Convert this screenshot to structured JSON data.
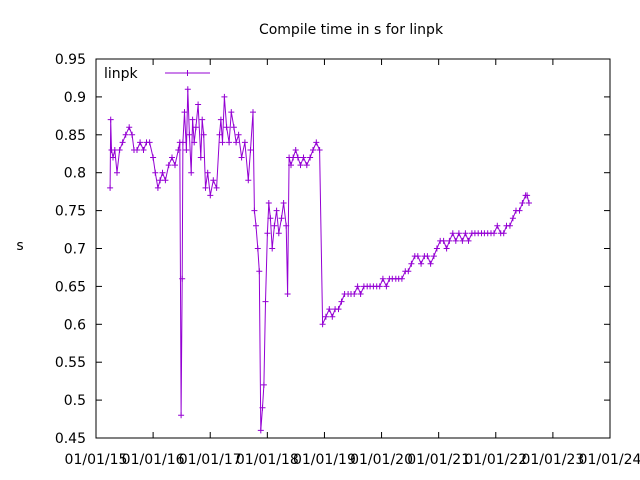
{
  "chart_data": {
    "type": "line",
    "title": "Compile time in s for linpk",
    "xlabel": "",
    "ylabel": "s",
    "ylim": [
      0.45,
      0.95
    ],
    "yticks": [
      "0.45",
      "0.5",
      "0.55",
      "0.6",
      "0.65",
      "0.7",
      "0.75",
      "0.8",
      "0.85",
      "0.9",
      "0.95"
    ],
    "xlim": [
      "2015-01-01",
      "2024-01-01"
    ],
    "xticks": [
      "01/01/15",
      "01/01/16",
      "01/01/17",
      "01/01/18",
      "01/01/19",
      "01/01/20",
      "01/01/21",
      "01/01/22",
      "01/01/23",
      "01/01/24"
    ],
    "grid": false,
    "legend_position": "top-left",
    "series": [
      {
        "name": "linpk",
        "color": "#9400d3",
        "marker": "plus",
        "points": [
          [
            "2015-04-01",
            0.78
          ],
          [
            "2015-04-05",
            0.87
          ],
          [
            "2015-04-10",
            0.83
          ],
          [
            "2015-04-20",
            0.82
          ],
          [
            "2015-05-01",
            0.83
          ],
          [
            "2015-05-15",
            0.8
          ],
          [
            "2015-06-01",
            0.83
          ],
          [
            "2015-06-20",
            0.84
          ],
          [
            "2015-07-10",
            0.85
          ],
          [
            "2015-08-01",
            0.86
          ],
          [
            "2015-08-20",
            0.85
          ],
          [
            "2015-09-01",
            0.83
          ],
          [
            "2015-09-20",
            0.83
          ],
          [
            "2015-10-10",
            0.84
          ],
          [
            "2015-11-01",
            0.83
          ],
          [
            "2015-11-20",
            0.84
          ],
          [
            "2015-12-10",
            0.84
          ],
          [
            "2016-01-01",
            0.82
          ],
          [
            "2016-01-15",
            0.8
          ],
          [
            "2016-02-01",
            0.78
          ],
          [
            "2016-02-15",
            0.79
          ],
          [
            "2016-03-01",
            0.8
          ],
          [
            "2016-03-20",
            0.79
          ],
          [
            "2016-04-10",
            0.81
          ],
          [
            "2016-05-01",
            0.82
          ],
          [
            "2016-05-20",
            0.81
          ],
          [
            "2016-06-10",
            0.83
          ],
          [
            "2016-06-20",
            0.84
          ],
          [
            "2016-06-28",
            0.48
          ],
          [
            "2016-07-05",
            0.66
          ],
          [
            "2016-07-10",
            0.84
          ],
          [
            "2016-07-20",
            0.88
          ],
          [
            "2016-08-01",
            0.83
          ],
          [
            "2016-08-10",
            0.91
          ],
          [
            "2016-08-20",
            0.85
          ],
          [
            "2016-09-01",
            0.8
          ],
          [
            "2016-09-10",
            0.87
          ],
          [
            "2016-09-20",
            0.84
          ],
          [
            "2016-10-01",
            0.86
          ],
          [
            "2016-10-15",
            0.89
          ],
          [
            "2016-11-01",
            0.82
          ],
          [
            "2016-11-10",
            0.87
          ],
          [
            "2016-11-20",
            0.85
          ],
          [
            "2016-12-01",
            0.78
          ],
          [
            "2016-12-15",
            0.8
          ],
          [
            "2017-01-01",
            0.77
          ],
          [
            "2017-01-20",
            0.79
          ],
          [
            "2017-02-10",
            0.78
          ],
          [
            "2017-03-01",
            0.85
          ],
          [
            "2017-03-10",
            0.87
          ],
          [
            "2017-03-20",
            0.84
          ],
          [
            "2017-04-01",
            0.9
          ],
          [
            "2017-04-15",
            0.86
          ],
          [
            "2017-05-01",
            0.84
          ],
          [
            "2017-05-15",
            0.88
          ],
          [
            "2017-06-01",
            0.86
          ],
          [
            "2017-06-15",
            0.84
          ],
          [
            "2017-07-01",
            0.85
          ],
          [
            "2017-07-20",
            0.82
          ],
          [
            "2017-08-10",
            0.84
          ],
          [
            "2017-09-01",
            0.79
          ],
          [
            "2017-09-15",
            0.83
          ],
          [
            "2017-10-01",
            0.88
          ],
          [
            "2017-10-10",
            0.75
          ],
          [
            "2017-10-20",
            0.73
          ],
          [
            "2017-11-01",
            0.7
          ],
          [
            "2017-11-10",
            0.67
          ],
          [
            "2017-11-20",
            0.46
          ],
          [
            "2017-12-01",
            0.49
          ],
          [
            "2017-12-10",
            0.52
          ],
          [
            "2017-12-20",
            0.63
          ],
          [
            "2018-01-01",
            0.72
          ],
          [
            "2018-01-10",
            0.76
          ],
          [
            "2018-01-20",
            0.74
          ],
          [
            "2018-02-01",
            0.7
          ],
          [
            "2018-02-15",
            0.73
          ],
          [
            "2018-03-01",
            0.75
          ],
          [
            "2018-03-15",
            0.72
          ],
          [
            "2018-04-01",
            0.74
          ],
          [
            "2018-04-15",
            0.76
          ],
          [
            "2018-05-01",
            0.73
          ],
          [
            "2018-05-10",
            0.64
          ],
          [
            "2018-05-20",
            0.82
          ],
          [
            "2018-06-01",
            0.81
          ],
          [
            "2018-06-15",
            0.82
          ],
          [
            "2018-07-01",
            0.83
          ],
          [
            "2018-07-15",
            0.82
          ],
          [
            "2018-08-01",
            0.81
          ],
          [
            "2018-08-20",
            0.82
          ],
          [
            "2018-09-10",
            0.81
          ],
          [
            "2018-10-01",
            0.82
          ],
          [
            "2018-10-20",
            0.83
          ],
          [
            "2018-11-10",
            0.84
          ],
          [
            "2018-12-01",
            0.83
          ],
          [
            "2018-12-20",
            0.6
          ],
          [
            "2019-01-10",
            0.61
          ],
          [
            "2019-02-01",
            0.62
          ],
          [
            "2019-02-20",
            0.61
          ],
          [
            "2019-03-10",
            0.62
          ],
          [
            "2019-04-01",
            0.62
          ],
          [
            "2019-04-20",
            0.63
          ],
          [
            "2019-05-10",
            0.64
          ],
          [
            "2019-06-01",
            0.64
          ],
          [
            "2019-06-20",
            0.64
          ],
          [
            "2019-07-10",
            0.64
          ],
          [
            "2019-08-01",
            0.65
          ],
          [
            "2019-08-20",
            0.64
          ],
          [
            "2019-09-10",
            0.65
          ],
          [
            "2019-10-01",
            0.65
          ],
          [
            "2019-10-20",
            0.65
          ],
          [
            "2019-11-10",
            0.65
          ],
          [
            "2019-12-01",
            0.65
          ],
          [
            "2019-12-20",
            0.65
          ],
          [
            "2020-01-10",
            0.66
          ],
          [
            "2020-02-01",
            0.65
          ],
          [
            "2020-02-20",
            0.66
          ],
          [
            "2020-03-10",
            0.66
          ],
          [
            "2020-04-01",
            0.66
          ],
          [
            "2020-04-20",
            0.66
          ],
          [
            "2020-05-10",
            0.66
          ],
          [
            "2020-06-01",
            0.67
          ],
          [
            "2020-06-20",
            0.67
          ],
          [
            "2020-07-10",
            0.68
          ],
          [
            "2020-08-01",
            0.69
          ],
          [
            "2020-08-20",
            0.69
          ],
          [
            "2020-09-10",
            0.68
          ],
          [
            "2020-10-01",
            0.69
          ],
          [
            "2020-10-20",
            0.69
          ],
          [
            "2020-11-10",
            0.68
          ],
          [
            "2020-12-01",
            0.69
          ],
          [
            "2020-12-20",
            0.7
          ],
          [
            "2021-01-10",
            0.71
          ],
          [
            "2021-02-01",
            0.71
          ],
          [
            "2021-02-20",
            0.7
          ],
          [
            "2021-03-10",
            0.71
          ],
          [
            "2021-04-01",
            0.72
          ],
          [
            "2021-04-20",
            0.71
          ],
          [
            "2021-05-10",
            0.72
          ],
          [
            "2021-06-01",
            0.71
          ],
          [
            "2021-06-20",
            0.72
          ],
          [
            "2021-07-10",
            0.71
          ],
          [
            "2021-08-01",
            0.72
          ],
          [
            "2021-08-20",
            0.72
          ],
          [
            "2021-09-10",
            0.72
          ],
          [
            "2021-10-01",
            0.72
          ],
          [
            "2021-10-20",
            0.72
          ],
          [
            "2021-11-10",
            0.72
          ],
          [
            "2021-12-01",
            0.72
          ],
          [
            "2021-12-20",
            0.72
          ],
          [
            "2022-01-10",
            0.73
          ],
          [
            "2022-02-01",
            0.72
          ],
          [
            "2022-02-20",
            0.72
          ],
          [
            "2022-03-10",
            0.73
          ],
          [
            "2022-04-01",
            0.73
          ],
          [
            "2022-04-20",
            0.74
          ],
          [
            "2022-05-10",
            0.75
          ],
          [
            "2022-06-01",
            0.75
          ],
          [
            "2022-06-20",
            0.76
          ],
          [
            "2022-07-10",
            0.77
          ],
          [
            "2022-07-20",
            0.77
          ],
          [
            "2022-08-01",
            0.76
          ]
        ]
      }
    ]
  }
}
